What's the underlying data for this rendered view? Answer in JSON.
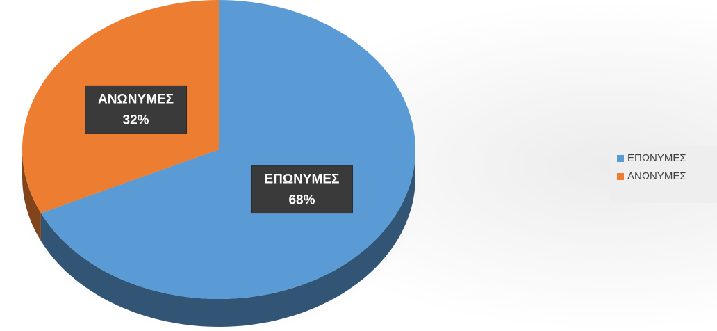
{
  "chart_data": {
    "type": "pie",
    "categories": [
      "ΕΠΩΝΥΜΕΣ",
      "ΑΝΩΝΥΜΕΣ"
    ],
    "values": [
      68,
      32
    ],
    "value_labels": [
      "68%",
      "32%"
    ],
    "colors": [
      "#5b9bd5",
      "#ed7d31"
    ],
    "legend": "right"
  }
}
